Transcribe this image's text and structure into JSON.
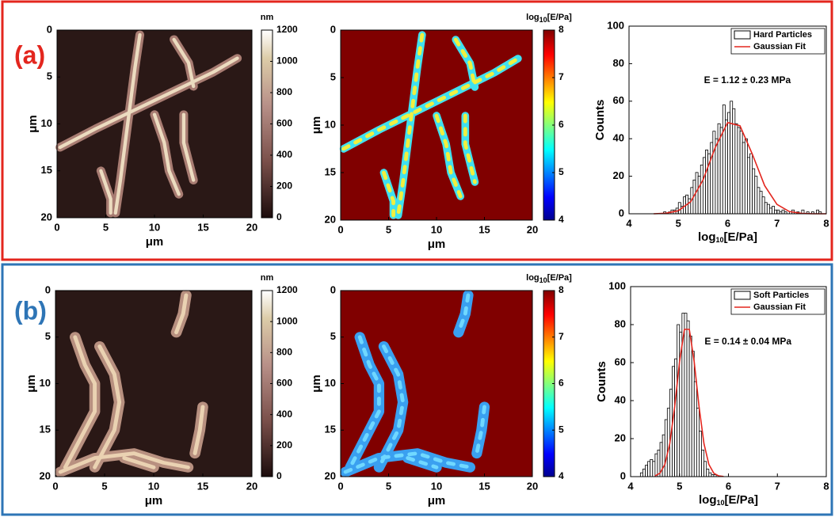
{
  "panel_labels": [
    "(a)",
    "(b)"
  ],
  "chart_data": [
    {
      "type": "image",
      "xlim": [
        0,
        20
      ],
      "ylim": [
        0,
        20
      ],
      "yreverse": true,
      "xticks": [
        0,
        5,
        10,
        15,
        20
      ],
      "yticks": [
        0,
        5,
        10,
        15,
        20
      ],
      "xlabel": "μm",
      "ylabel": "μm",
      "colorbar": {
        "label": "nm",
        "colormap": "pink",
        "clim": [
          0,
          1200
        ],
        "ticks": [
          0,
          200,
          400,
          600,
          800,
          1000,
          1200
        ]
      }
    },
    {
      "type": "image",
      "xlim": [
        0,
        20
      ],
      "ylim": [
        0,
        20
      ],
      "yreverse": true,
      "xticks": [
        0,
        5,
        10,
        15,
        20
      ],
      "yticks": [
        0,
        5,
        10,
        15,
        20
      ],
      "xlabel": "μm",
      "ylabel": "μm",
      "colorbar": {
        "label": [
          "log",
          "10",
          "[E/Pa]"
        ],
        "colormap": "jet",
        "clim": [
          4,
          8
        ],
        "ticks": [
          4,
          5,
          6,
          7,
          8
        ]
      }
    },
    {
      "type": "histogram",
      "xlabel": [
        "log",
        "10",
        "[E/Pa]"
      ],
      "ylabel": "Counts",
      "annotation": "E = 1.12 ± 0.23 MPa",
      "legend": "upper right",
      "xlim": [
        4,
        8
      ],
      "ylim": [
        0,
        100
      ],
      "xticks": [
        4,
        5,
        6,
        7,
        8
      ],
      "yticks": [
        0,
        20,
        40,
        60,
        80,
        100
      ],
      "bins": [
        4.7,
        4.75,
        4.8,
        4.85,
        4.9,
        4.95,
        5,
        5.05,
        5.1,
        5.15,
        5.2,
        5.25,
        5.3,
        5.35,
        5.4,
        5.45,
        5.5,
        5.55,
        5.6,
        5.65,
        5.7,
        5.75,
        5.8,
        5.85,
        5.9,
        5.95,
        6,
        6.05,
        6.1,
        6.15,
        6.2,
        6.25,
        6.3,
        6.35,
        6.4,
        6.45,
        6.5,
        6.55,
        6.6,
        6.65,
        6.7,
        6.75,
        6.8,
        6.85,
        6.9,
        6.95,
        7,
        7.05,
        7.1,
        7.15,
        7.2,
        7.25,
        7.3,
        7.35,
        7.4,
        7.45,
        7.5,
        7.55,
        7.6,
        7.65,
        7.7,
        7.75,
        7.8,
        7.85,
        7.9
      ],
      "series": [
        {
          "name": "Hard Particles",
          "color": "#000000",
          "values": [
            1,
            0,
            1,
            2,
            2,
            3,
            6,
            4,
            9,
            10,
            8,
            14,
            18,
            22,
            20,
            26,
            30,
            34,
            32,
            38,
            44,
            40,
            48,
            46,
            58,
            50,
            54,
            60,
            56,
            48,
            46,
            44,
            38,
            40,
            30,
            32,
            24,
            20,
            14,
            12,
            9,
            6,
            5,
            3,
            4,
            2,
            2,
            1,
            2,
            1,
            0,
            1,
            2,
            0,
            1,
            0,
            2,
            0,
            1,
            0,
            1,
            0,
            2,
            1
          ]
        },
        {
          "name": "Gaussian Fit",
          "color": "#e3261e",
          "x": [
            4.5,
            4.75,
            5,
            5.25,
            5.5,
            5.75,
            6,
            6.25,
            6.5,
            6.75,
            7,
            7.25,
            7.5,
            7.75,
            8
          ],
          "values": [
            0,
            0.3,
            1.6,
            6.4,
            18,
            35.4,
            48.6,
            46.9,
            31.8,
            15,
            5,
            1.2,
            0.2,
            0,
            0
          ]
        }
      ]
    },
    {
      "type": "image",
      "xlim": [
        0,
        20
      ],
      "ylim": [
        0,
        20
      ],
      "yreverse": true,
      "xticks": [
        0,
        5,
        10,
        15,
        20
      ],
      "yticks": [
        0,
        5,
        10,
        15,
        20
      ],
      "xlabel": "μm",
      "ylabel": "μm",
      "colorbar": {
        "label": "nm",
        "colormap": "pink",
        "clim": [
          0,
          1200
        ],
        "ticks": [
          0,
          200,
          400,
          600,
          800,
          1000,
          1200
        ]
      }
    },
    {
      "type": "image",
      "xlim": [
        0,
        20
      ],
      "ylim": [
        0,
        20
      ],
      "yreverse": true,
      "xticks": [
        0,
        5,
        10,
        15,
        20
      ],
      "yticks": [
        0,
        5,
        10,
        15,
        20
      ],
      "xlabel": "μm",
      "ylabel": "μm",
      "colorbar": {
        "label": [
          "log",
          "10",
          "[E/Pa]"
        ],
        "colormap": "jet",
        "clim": [
          4,
          8
        ],
        "ticks": [
          4,
          5,
          6,
          7,
          8
        ]
      }
    },
    {
      "type": "histogram",
      "xlabel": [
        "log",
        "10",
        "[E/Pa]"
      ],
      "ylabel": "Counts",
      "annotation": "E = 0.14 ± 0.04 MPa",
      "legend": "upper right",
      "xlim": [
        4,
        8
      ],
      "ylim": [
        0,
        100
      ],
      "xticks": [
        4,
        5,
        6,
        7,
        8
      ],
      "yticks": [
        0,
        20,
        40,
        60,
        80,
        100
      ],
      "bins": [
        4.2,
        4.25,
        4.3,
        4.35,
        4.4,
        4.45,
        4.5,
        4.55,
        4.6,
        4.65,
        4.7,
        4.75,
        4.8,
        4.85,
        4.9,
        4.95,
        5,
        5.05,
        5.1,
        5.15,
        5.2,
        5.25,
        5.3,
        5.35,
        5.4,
        5.45,
        5.5,
        5.55,
        5.6,
        5.65,
        5.7,
        5.75,
        5.8
      ],
      "series": [
        {
          "name": "Soft Particles",
          "color": "#000000",
          "values": [
            2,
            4,
            6,
            8,
            9,
            8,
            12,
            14,
            18,
            22,
            30,
            36,
            46,
            58,
            62,
            80,
            76,
            86,
            86,
            82,
            74,
            66,
            50,
            36,
            24,
            14,
            8,
            4,
            2,
            1,
            1,
            0
          ]
        },
        {
          "name": "Gaussian Fit",
          "color": "#e3261e",
          "x": [
            4.5,
            4.6,
            4.7,
            4.8,
            4.9,
            5,
            5.1,
            5.2,
            5.3,
            5.4,
            5.5,
            5.6,
            5.7,
            5.8,
            5.9
          ],
          "values": [
            0.4,
            1.8,
            6.4,
            17.3,
            36.6,
            60.4,
            77.5,
            77.5,
            60.4,
            36.6,
            17.3,
            6.4,
            1.8,
            0.4,
            0.1
          ]
        }
      ]
    }
  ]
}
